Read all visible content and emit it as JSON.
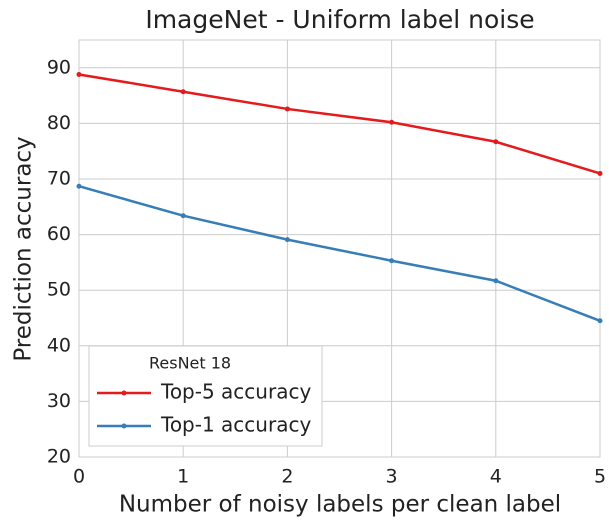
{
  "chart_data": {
    "type": "line",
    "title": "ImageNet - Uniform label noise",
    "xlabel": "Number of noisy labels per clean label",
    "ylabel": "Prediction accuracy",
    "x": [
      0,
      1,
      2,
      3,
      4,
      5
    ],
    "series": [
      {
        "name": "Top-5 accuracy",
        "color": "#e41a1c",
        "values": [
          88.8,
          85.7,
          82.6,
          80.2,
          76.7,
          71.0
        ]
      },
      {
        "name": "Top-1 accuracy",
        "color": "#377eb8",
        "values": [
          68.7,
          63.4,
          59.1,
          55.3,
          51.7,
          44.5
        ]
      }
    ],
    "legend_title": "ResNet 18",
    "legend": "lower left",
    "xlim": [
      0,
      5
    ],
    "xticks": [
      0,
      1,
      2,
      3,
      4,
      5
    ],
    "ylim": [
      20,
      95
    ],
    "yticks": [
      20,
      30,
      40,
      50,
      60,
      70,
      80,
      90
    ],
    "grid": true
  }
}
